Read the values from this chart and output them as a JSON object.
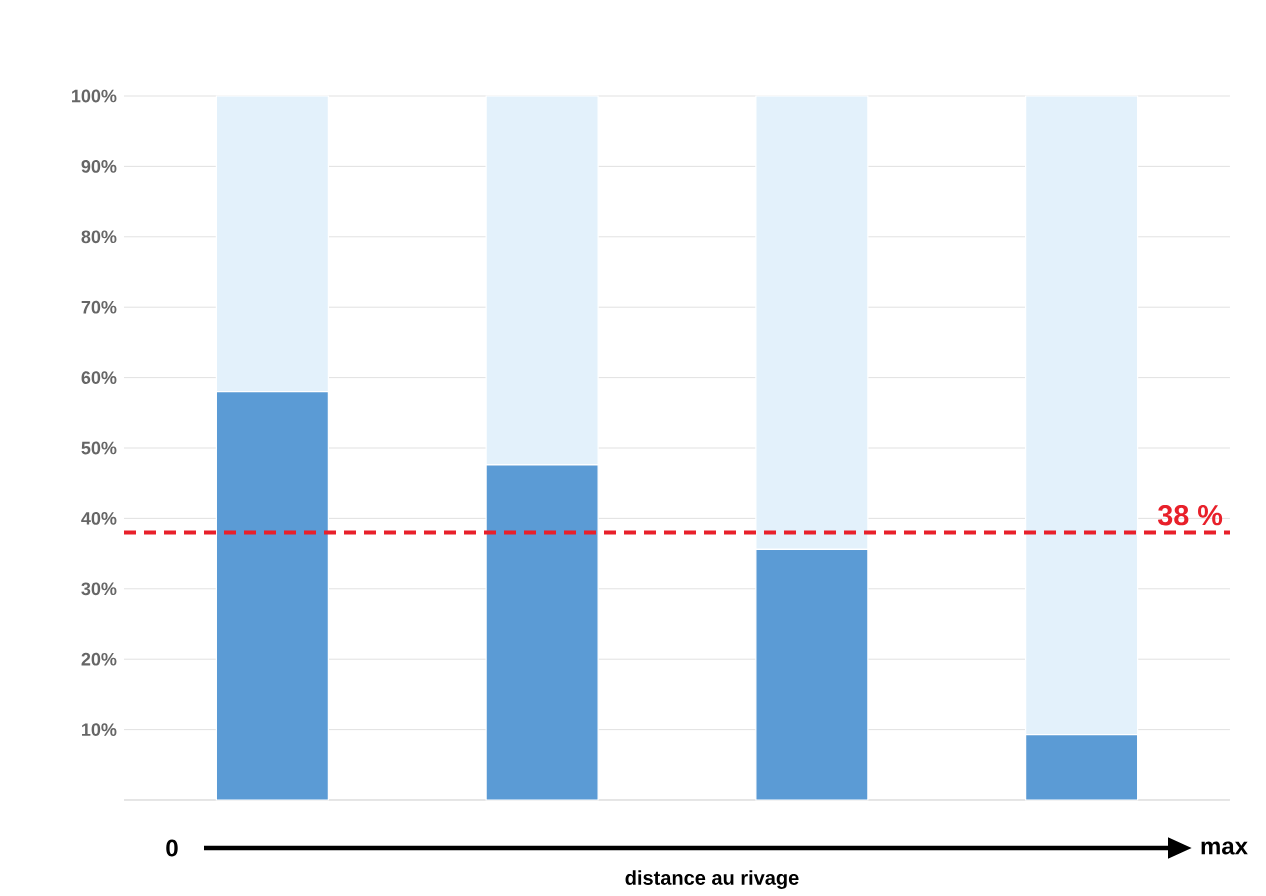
{
  "chart_data": {
    "type": "bar",
    "stacked": true,
    "xlabel": "distance au rivage",
    "categories": [
      null,
      null,
      null,
      null
    ],
    "series": [
      {
        "color": "#5b9bd5",
        "values": [
          58,
          47.6,
          35.6,
          9.3
        ]
      },
      {
        "color": "#e3f1fb",
        "values": [
          42,
          52.4,
          64.4,
          90.7
        ]
      }
    ],
    "ylim": [
      0,
      100
    ],
    "yticks": [
      {
        "value": 10,
        "label": "10%"
      },
      {
        "value": 20,
        "label": "20%"
      },
      {
        "value": 30,
        "label": "30%"
      },
      {
        "value": 40,
        "label": "40%"
      },
      {
        "value": 50,
        "label": "50%"
      },
      {
        "value": 60,
        "label": "60%"
      },
      {
        "value": 70,
        "label": "70%"
      },
      {
        "value": 80,
        "label": "80%"
      },
      {
        "value": 90,
        "label": "90%"
      },
      {
        "value": 100,
        "label": "100%"
      }
    ],
    "grid": "y",
    "ref_lines": [
      {
        "axis": "y",
        "value": 38,
        "label": "38 %",
        "color": "#e8202a",
        "line_style": "dashed"
      }
    ],
    "annotations": [
      "0",
      "max"
    ]
  }
}
